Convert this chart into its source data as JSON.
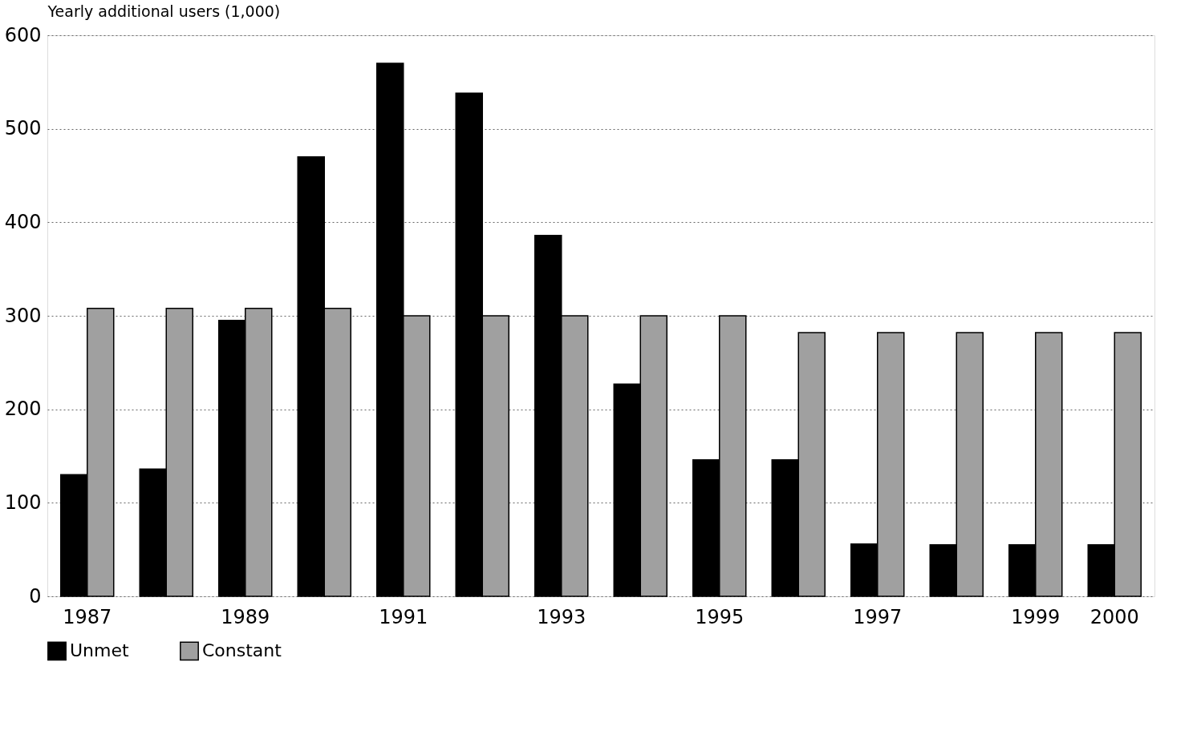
{
  "chart_data": {
    "type": "bar",
    "ylabel": "Yearly additional users (1,000)",
    "categories": [
      "1987",
      null,
      "1989",
      null,
      "1991",
      null,
      "1993",
      null,
      "1995",
      null,
      "1997",
      null,
      "1999",
      "2000"
    ],
    "series": [
      {
        "name": "Unmet",
        "color": "#000000",
        "values": [
          130,
          136,
          295,
          470,
          570,
          538,
          386,
          227,
          146,
          146,
          56,
          55,
          55,
          55
        ]
      },
      {
        "name": "Constant",
        "color": "#a0a0a0",
        "values": [
          308,
          308,
          308,
          308,
          300,
          300,
          300,
          300,
          300,
          282,
          282,
          282,
          282,
          282
        ]
      }
    ],
    "ylim": [
      0,
      600
    ],
    "yticks": [
      0,
      100,
      200,
      300,
      400,
      500,
      600
    ],
    "grid": "y",
    "legend": "bottom"
  }
}
